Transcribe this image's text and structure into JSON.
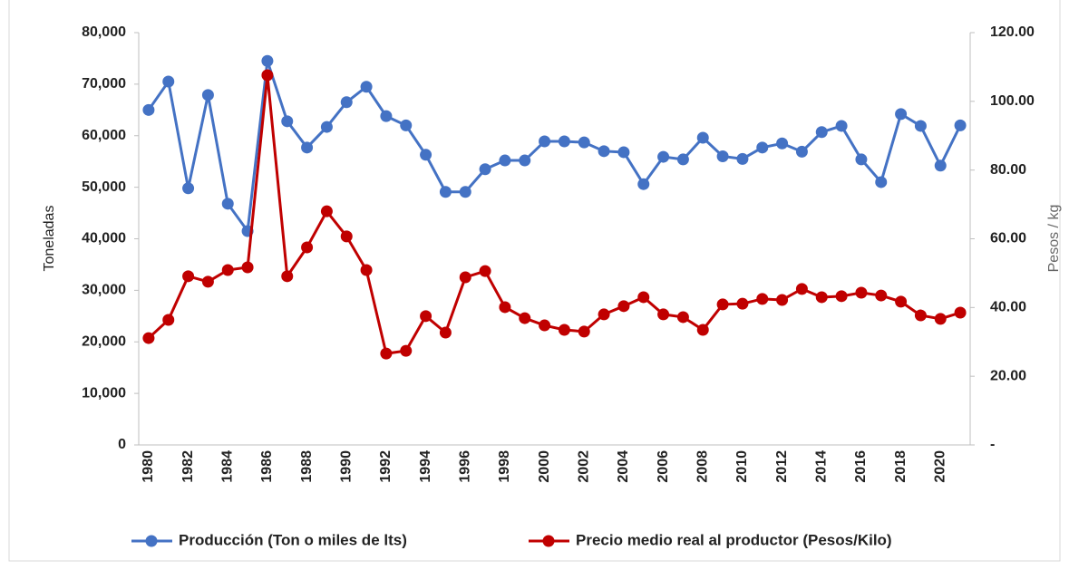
{
  "chart_data": {
    "type": "line",
    "categories": [
      "1980",
      null,
      "1982",
      null,
      "1984",
      null,
      "1986",
      null,
      "1988",
      null,
      "1990",
      null,
      "1992",
      null,
      "1994",
      null,
      "1996",
      null,
      "1998",
      null,
      "2000",
      null,
      "2002",
      null,
      "2004",
      null,
      "2006",
      null,
      "2008",
      null,
      "2010",
      null,
      "2012",
      null,
      "2014",
      null,
      "2016",
      null,
      "2018",
      null,
      "2020",
      null
    ],
    "y_label": "Toneladas",
    "y2_label": "Pesos / kg",
    "ylim": [
      0,
      80000
    ],
    "yticks": [
      0,
      {
        "value": 10000,
        "label": "10,000"
      },
      {
        "value": 20000,
        "label": "20,000"
      },
      {
        "value": 30000,
        "label": "30,000"
      },
      {
        "value": 40000,
        "label": "40,000"
      },
      {
        "value": 50000,
        "label": "50,000"
      },
      {
        "value": 60000,
        "label": "60,000"
      },
      {
        "value": 70000,
        "label": "70,000"
      },
      {
        "value": 80000,
        "label": "80,000"
      }
    ],
    "y2lim": [
      0,
      120
    ],
    "y2ticks": [
      {
        "value": 0,
        "label": "-"
      },
      {
        "value": 20,
        "label": "20.00"
      },
      {
        "value": 40,
        "label": "40.00"
      },
      {
        "value": 60,
        "label": "60.00"
      },
      {
        "value": 80,
        "label": "80.00"
      },
      {
        "value": 100,
        "label": "100.00"
      },
      {
        "value": 120,
        "label": "120.00"
      }
    ],
    "grid": false,
    "legend": "bottom",
    "series": [
      {
        "name": "Producción (Ton o miles de lts)",
        "color": "#4472c4",
        "values": [
          65000,
          70500,
          49800,
          67900,
          46800,
          41500,
          74500,
          62800,
          57700,
          61700,
          66500,
          69500,
          63800,
          62000,
          56300,
          49100,
          49100,
          53500,
          55200,
          55200,
          58900,
          58900,
          58700,
          57000,
          56800,
          50600,
          55900,
          55400,
          59600,
          56000,
          55500,
          57700,
          58500,
          56900,
          60700,
          61900,
          55400,
          51000,
          64200,
          61900,
          54200,
          62000
        ]
      },
      {
        "name": "Precio medio real al productor (Pesos/Kilo)",
        "color": "#c00000",
        "axis": "y2",
        "values": [
          31.1,
          36.4,
          49.1,
          47.5,
          50.9,
          51.7,
          107.6,
          49.1,
          57.5,
          68.0,
          60.7,
          50.9,
          26.6,
          27.4,
          37.5,
          32.7,
          48.8,
          50.6,
          40.1,
          36.9,
          34.8,
          33.5,
          33.0,
          38.0,
          40.4,
          43.0,
          38.0,
          37.2,
          33.5,
          40.9,
          41.1,
          42.5,
          42.2,
          45.4,
          43.0,
          43.3,
          44.3,
          43.5,
          41.7,
          37.7,
          36.7,
          38.5
        ]
      }
    ]
  }
}
